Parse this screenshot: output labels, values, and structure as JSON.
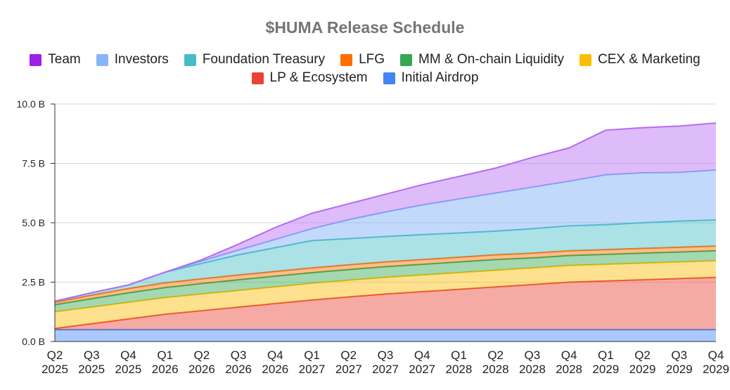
{
  "chart_data": {
    "type": "area",
    "stacked": true,
    "title": "$HUMA Release Schedule",
    "xlabel": "",
    "ylabel": "",
    "ylim": [
      0,
      10
    ],
    "y_unit": "B",
    "y_ticks": [
      "0.0 B",
      "2.5 B",
      "5.0 B",
      "7.5 B",
      "10.0 B"
    ],
    "grid": true,
    "legend_position": "top",
    "categories": [
      [
        "Q2",
        "2025"
      ],
      [
        "Q3",
        "2025"
      ],
      [
        "Q4",
        "2025"
      ],
      [
        "Q1",
        "2026"
      ],
      [
        "Q2",
        "2026"
      ],
      [
        "Q3",
        "2026"
      ],
      [
        "Q4",
        "2026"
      ],
      [
        "Q1",
        "2027"
      ],
      [
        "Q2",
        "2027"
      ],
      [
        "Q3",
        "2027"
      ],
      [
        "Q4",
        "2027"
      ],
      [
        "Q1",
        "2028"
      ],
      [
        "Q2",
        "2028"
      ],
      [
        "Q3",
        "2028"
      ],
      [
        "Q4",
        "2028"
      ],
      [
        "Q1",
        "2029"
      ],
      [
        "Q2",
        "2029"
      ],
      [
        "Q3",
        "2029"
      ],
      [
        "Q4",
        "2029"
      ]
    ],
    "series": [
      {
        "name": "Initial Airdrop",
        "color": "#4285f4",
        "values": [
          0.5,
          0.5,
          0.5,
          0.5,
          0.5,
          0.5,
          0.5,
          0.5,
          0.5,
          0.5,
          0.5,
          0.5,
          0.5,
          0.5,
          0.5,
          0.5,
          0.5,
          0.5,
          0.5
        ]
      },
      {
        "name": "LP & Ecosystem",
        "color": "#ea4335",
        "values": [
          0.05,
          0.25,
          0.45,
          0.65,
          0.8,
          0.95,
          1.1,
          1.25,
          1.38,
          1.5,
          1.6,
          1.7,
          1.8,
          1.9,
          2.0,
          2.05,
          2.1,
          2.15,
          2.2
        ]
      },
      {
        "name": "CEX & Marketing",
        "color": "#fbbc04",
        "values": [
          0.7,
          0.7,
          0.7,
          0.7,
          0.7,
          0.7,
          0.7,
          0.7,
          0.7,
          0.7,
          0.7,
          0.7,
          0.7,
          0.7,
          0.7,
          0.7,
          0.7,
          0.7,
          0.7
        ]
      },
      {
        "name": "MM & On-chain Liquidity",
        "color": "#34a853",
        "values": [
          0.3,
          0.35,
          0.4,
          0.42,
          0.44,
          0.45,
          0.45,
          0.45,
          0.45,
          0.45,
          0.45,
          0.45,
          0.45,
          0.42,
          0.42,
          0.42,
          0.42,
          0.42,
          0.42
        ]
      },
      {
        "name": "LFG",
        "color": "#ff6d01",
        "values": [
          0.1,
          0.15,
          0.18,
          0.2,
          0.2,
          0.2,
          0.2,
          0.2,
          0.2,
          0.2,
          0.2,
          0.2,
          0.2,
          0.2,
          0.2,
          0.2,
          0.2,
          0.2,
          0.2
        ]
      },
      {
        "name": "Foundation Treasury",
        "color": "#46bdc6",
        "values": [
          0.05,
          0.1,
          0.15,
          0.45,
          0.65,
          0.85,
          1.0,
          1.15,
          1.1,
          1.07,
          1.05,
          1.02,
          1.0,
          1.03,
          1.05,
          1.05,
          1.08,
          1.1,
          1.1
        ]
      },
      {
        "name": "Investors",
        "color": "#7baaf7",
        "values": [
          0,
          0,
          0,
          0,
          0.1,
          0.2,
          0.35,
          0.5,
          0.8,
          1.03,
          1.25,
          1.43,
          1.6,
          1.75,
          1.88,
          2.1,
          2.1,
          2.05,
          2.1
        ]
      },
      {
        "name": "Team",
        "color": "#b56af4",
        "values": [
          0,
          0,
          0,
          0,
          0.05,
          0.25,
          0.5,
          0.65,
          0.67,
          0.75,
          0.85,
          0.95,
          1.05,
          1.25,
          1.4,
          1.88,
          1.9,
          1.95,
          1.98
        ]
      }
    ]
  },
  "legend": {
    "row1": [
      {
        "label": "Team",
        "color": "#9e1fe8"
      },
      {
        "label": "Investors",
        "color": "#8ab4f8"
      },
      {
        "label": "Foundation Treasury",
        "color": "#46bdc6"
      },
      {
        "label": "LFG",
        "color": "#ff6d01"
      },
      {
        "label": "MM & On-chain Liquidity",
        "color": "#34a853"
      },
      {
        "label": "CEX & Marketing",
        "color": "#fbbc04"
      }
    ],
    "row2": [
      {
        "label": "LP & Ecosystem",
        "color": "#ea4335"
      },
      {
        "label": "Initial Airdrop",
        "color": "#4285f4"
      }
    ]
  }
}
